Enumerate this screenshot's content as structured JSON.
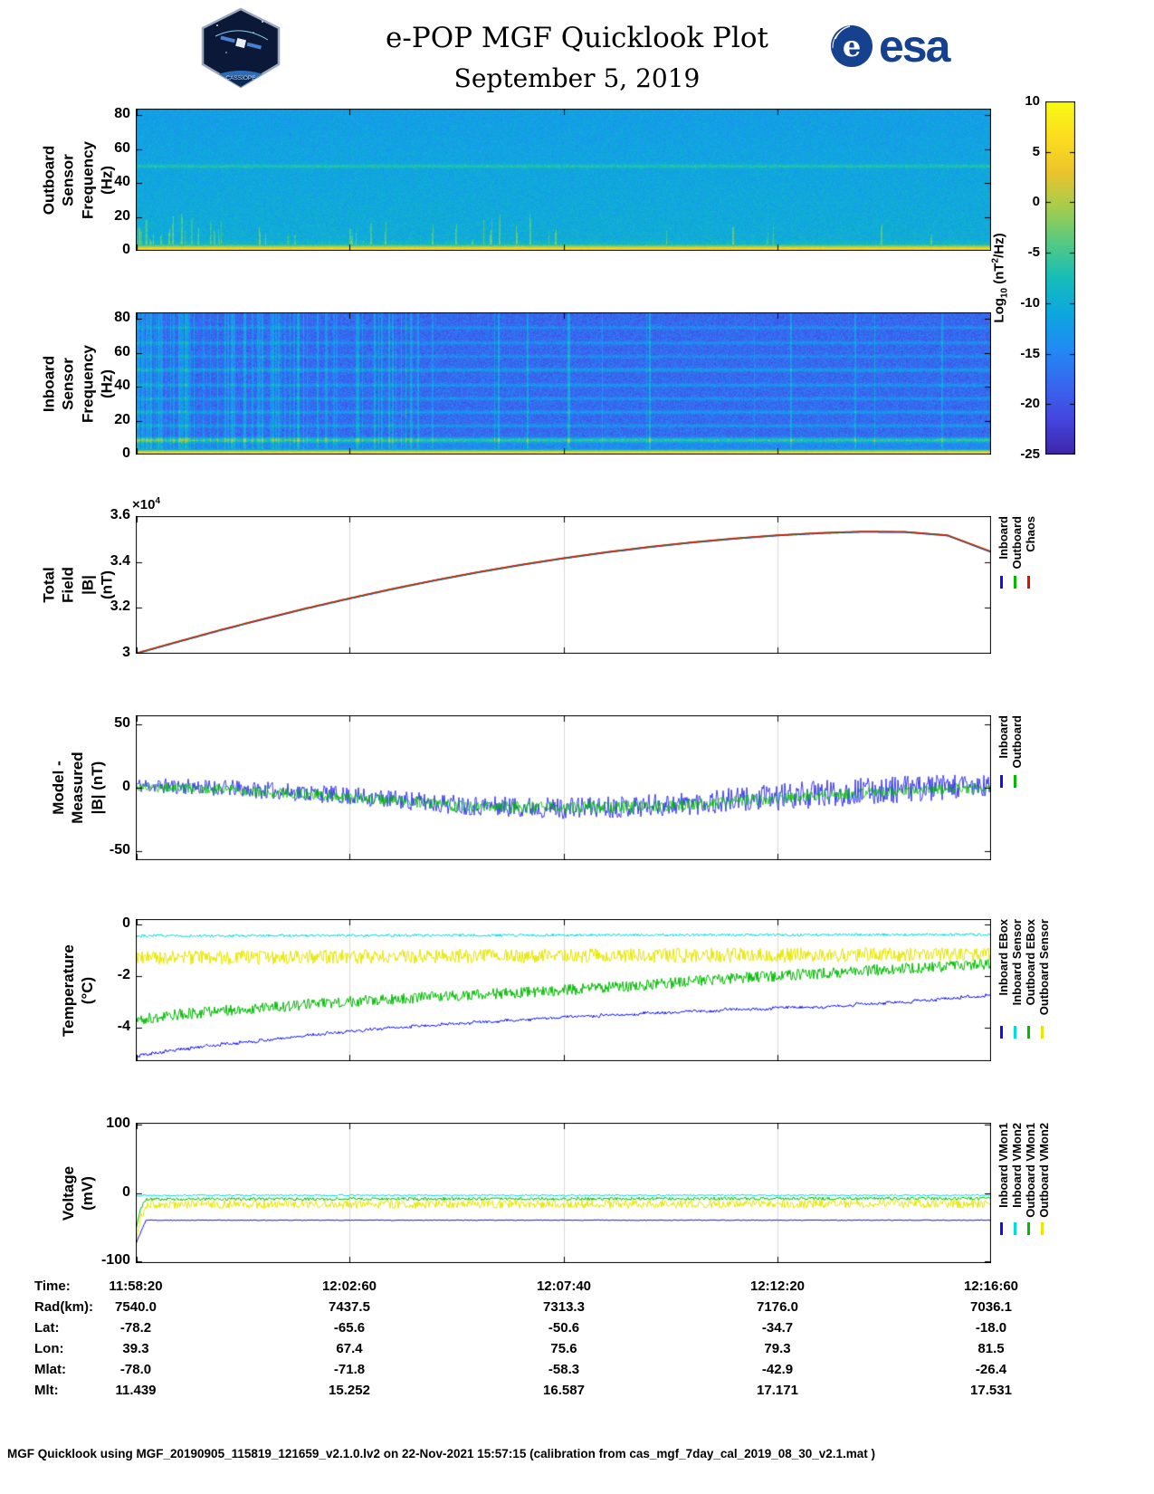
{
  "header": {
    "title": "e-POP MGF Quicklook Plot",
    "subtitle": "September 5, 2019",
    "esa_wordmark": "esa",
    "esa_emblem": "e",
    "cassiope_label": "CASSIOPE"
  },
  "colorbar": {
    "label_pre": "Log",
    "label_sub": "10",
    "label_mid": " (nT",
    "label_sup": "2",
    "label_post": "/Hz)",
    "vmin": -25,
    "vmax": 10,
    "ticks": [
      10,
      5,
      0,
      -5,
      -10,
      -15,
      -20,
      -25
    ]
  },
  "time_axis": {
    "tick_labels": [
      "11:58:20",
      "12:02:60",
      "12:07:40",
      "12:12:20",
      "12:16:60"
    ]
  },
  "ephemeris": {
    "rows": [
      {
        "label": "Time:",
        "values": [
          "11:58:20",
          "12:02:60",
          "12:07:40",
          "12:12:20",
          "12:16:60"
        ]
      },
      {
        "label": "Rad(km):",
        "values": [
          "7540.0",
          "7437.5",
          "7313.3",
          "7176.0",
          "7036.1"
        ]
      },
      {
        "label": "Lat:",
        "values": [
          "-78.2",
          "-65.6",
          "-50.6",
          "-34.7",
          "-18.0"
        ]
      },
      {
        "label": "Lon:",
        "values": [
          "39.3",
          "67.4",
          "75.6",
          "79.3",
          "81.5"
        ]
      },
      {
        "label": "Mlat:",
        "values": [
          "-78.0",
          "-71.8",
          "-58.3",
          "-42.9",
          "-26.4"
        ]
      },
      {
        "label": "Mlt:",
        "values": [
          "11.439",
          "15.252",
          "16.587",
          "17.171",
          "17.531"
        ]
      }
    ]
  },
  "footer": "MGF Quicklook using MGF_20190905_115819_121659_v2.1.0.lv2 on 22-Nov-2021 15:57:15 (calibration from cas_mgf_7day_cal_2019_08_30_v2.1.mat )",
  "chart_data": {
    "panels": [
      {
        "id": "outboard-spectrogram",
        "type": "heatmap",
        "ylabel": "Outboard Sensor\nFrequency (Hz)",
        "ylim": [
          0,
          84
        ],
        "yticks": [
          {
            "v": 0,
            "l": "0"
          },
          {
            "v": 20,
            "l": "20"
          },
          {
            "v": 40,
            "l": "40"
          },
          {
            "v": 60,
            "l": "60"
          },
          {
            "v": 80,
            "l": "80"
          }
        ],
        "colorbar_units": "Log10 (nT2/Hz)",
        "heat": {
          "seed": 7,
          "background": -10,
          "noise": 1.6,
          "topgrad": 2,
          "lowboost": {
            "fmax": 6,
            "dv": 2.5
          },
          "band": {
            "h1": 1.3,
            "h2": 3.6,
            "value": 6.2
          },
          "hot_bottom": 8.5,
          "lines": [
            {
              "f": 50,
              "v": -5.5,
              "w": 0.8
            }
          ],
          "streaks": {
            "count": 60,
            "xmax": 0.5,
            "xbias": 2,
            "globalfrac": 0.22,
            "vmin": -6,
            "vmax": -2.5,
            "hmin": 3,
            "hmax": 24
          }
        }
      },
      {
        "id": "inboard-spectrogram",
        "type": "heatmap",
        "ylabel": "Inboard Sensor\nFrequency (Hz)",
        "ylim": [
          0,
          84
        ],
        "yticks": [
          {
            "v": 0,
            "l": "0"
          },
          {
            "v": 20,
            "l": "20"
          },
          {
            "v": 40,
            "l": "40"
          },
          {
            "v": 60,
            "l": "60"
          },
          {
            "v": 80,
            "l": "80"
          }
        ],
        "heat": {
          "seed": 29,
          "background": -17.5,
          "noise": 2.3,
          "topgrad": 0.5,
          "lowboost": {
            "fmax": 10,
            "dv": 4.2
          },
          "band": {
            "h1": 1.3,
            "h2": 3.4,
            "value": 6.0
          },
          "hot_bottom": 8.5,
          "lines": [
            {
              "f": 8.5,
              "v": -8,
              "w": 1.0
            },
            {
              "f": 17,
              "v": -13,
              "w": 0.7
            },
            {
              "f": 25,
              "v": -12.5,
              "w": 0.7
            },
            {
              "f": 33,
              "v": -13.5,
              "w": 0.7
            },
            {
              "f": 41,
              "v": -13,
              "w": 0.7
            },
            {
              "f": 50,
              "v": -12.5,
              "w": 0.8
            },
            {
              "f": 58,
              "v": -14,
              "w": 0.7
            },
            {
              "f": 66,
              "v": -13.5,
              "w": 0.7
            },
            {
              "f": 75,
              "v": -14,
              "w": 0.7
            }
          ],
          "stripes": {
            "count": 120,
            "xmax": 0.33,
            "xbias": 2.1,
            "globalfrac": 0.15,
            "vmin": -14.5,
            "vmax": -10
          }
        }
      },
      {
        "id": "total-field",
        "type": "line",
        "ylabel": "Total Field\n|B| (nT)",
        "exp_pre": "×10",
        "exp_sup": "4",
        "ylim": [
          30000,
          36000
        ],
        "yticks": [
          {
            "v": 30000,
            "l": "3"
          },
          {
            "v": 32000,
            "l": "3.2"
          },
          {
            "v": 34000,
            "l": "3.4"
          },
          {
            "v": 36000,
            "l": "3.6"
          }
        ],
        "grid": [
          0.25,
          0.5,
          0.75
        ],
        "legend": [
          {
            "label": "Inboard",
            "color": "#1010ee"
          },
          {
            "label": "Outboard",
            "color": "#00bb00"
          },
          {
            "label": "Chaos",
            "color": "#dd1100"
          }
        ],
        "series": [
          {
            "name": "Inboard",
            "color": "#1010ee",
            "lw": 1.6,
            "seed": 3,
            "x": [
              0,
              0.05,
              0.1,
              0.15,
              0.2,
              0.25,
              0.3,
              0.35,
              0.4,
              0.45,
              0.5,
              0.55,
              0.6,
              0.65,
              0.7,
              0.75,
              0.8,
              0.85,
              0.9,
              0.95,
              1
            ],
            "y": [
              30000,
              30520,
              31030,
              31510,
              31970,
              32400,
              32810,
              33190,
              33540,
              33860,
              34150,
              34410,
              34640,
              34840,
              35010,
              35150,
              35250,
              35310,
              35300,
              35150,
              34450
            ]
          },
          {
            "name": "Outboard",
            "color": "#00bb00",
            "lw": 1.4,
            "seed": 4,
            "same": 0,
            "offset": 12
          },
          {
            "name": "Chaos",
            "color": "#dd1100",
            "lw": 1.2,
            "seed": 5,
            "same": 0,
            "offset": 24
          }
        ]
      },
      {
        "id": "model-measured",
        "type": "line",
        "ylabel": "Model - Measured\n|B| (nT)",
        "ylim": [
          -57,
          57
        ],
        "yticks": [
          {
            "v": -50,
            "l": "-50"
          },
          {
            "v": 0,
            "l": "0"
          },
          {
            "v": 50,
            "l": "50"
          }
        ],
        "grid": [
          0.25,
          0.5,
          0.75
        ],
        "legend": [
          {
            "label": "Inboard",
            "color": "#1010ee"
          },
          {
            "label": "Outboard",
            "color": "#00bb00"
          }
        ],
        "series": [
          {
            "name": "Inboard",
            "color": "#1010ee",
            "lw": 0.8,
            "seed": 11,
            "x": [
              0,
              0.1,
              0.2,
              0.3,
              0.35,
              0.4,
              0.5,
              0.6,
              0.7,
              0.8,
              0.9,
              1
            ],
            "y": [
              2,
              0,
              -4,
              -9,
              -12,
              -14,
              -16,
              -14,
              -10,
              -5,
              -1,
              1
            ],
            "ampx": [
              0,
              0.2,
              0.4,
              0.6,
              0.8,
              1
            ],
            "ampy": [
              6,
              7,
              8,
              9,
              11,
              10
            ]
          },
          {
            "name": "Outboard",
            "color": "#00bb00",
            "lw": 0.8,
            "seed": 17,
            "x": [
              0,
              0.1,
              0.2,
              0.3,
              0.35,
              0.4,
              0.5,
              0.6,
              0.7,
              0.8,
              0.9,
              1
            ],
            "y": [
              1,
              -1,
              -5,
              -10,
              -13,
              -15,
              -16,
              -15,
              -11,
              -6,
              -2,
              0
            ],
            "ampx": [
              0,
              0.5,
              1
            ],
            "ampy": [
              4,
              5,
              4
            ]
          }
        ]
      },
      {
        "id": "temperature",
        "type": "line",
        "ylabel": "Temperature\n(°C)",
        "ylim": [
          -5.3,
          0.2
        ],
        "yticks": [
          {
            "v": 0,
            "l": "0"
          },
          {
            "v": -2,
            "l": "-2"
          },
          {
            "v": -4,
            "l": "-4"
          }
        ],
        "grid": [
          0.25,
          0.5,
          0.75
        ],
        "legend": [
          {
            "label": "Inboard EBox",
            "color": "#1010ee"
          },
          {
            "label": "Inboard Sensor",
            "color": "#00dddd"
          },
          {
            "label": "Outboard EBox",
            "color": "#00bb00"
          },
          {
            "label": "Outboard Sensor",
            "color": "#e8e800"
          }
        ],
        "series": [
          {
            "name": "Inboard EBox",
            "color": "#1010ee",
            "lw": 1,
            "seed": 5,
            "step": true,
            "x": [
              0,
              0.02,
              0.05,
              0.1,
              0.15,
              0.2,
              0.25,
              0.3,
              0.4,
              0.5,
              0.6,
              0.7,
              0.8,
              0.9,
              1
            ],
            "y": [
              -5.1,
              -5.0,
              -4.85,
              -4.65,
              -4.5,
              -4.3,
              -4.15,
              -4.0,
              -3.8,
              -3.6,
              -3.45,
              -3.3,
              -3.2,
              -3.0,
              -2.75
            ],
            "ampx": [
              0,
              1
            ],
            "ampy": [
              0.05,
              0.05
            ]
          },
          {
            "name": "Inboard Sensor",
            "color": "#00dddd",
            "lw": 1,
            "seed": 6,
            "x": [
              0,
              1
            ],
            "y": [
              -0.45,
              -0.4
            ],
            "ampx": [
              0,
              1
            ],
            "ampy": [
              0.05,
              0.05
            ]
          },
          {
            "name": "Outboard EBox",
            "color": "#00bb00",
            "lw": 1,
            "seed": 8,
            "x": [
              0,
              0.05,
              0.1,
              0.2,
              0.3,
              0.4,
              0.5,
              0.6,
              0.7,
              0.8,
              0.9,
              1
            ],
            "y": [
              -3.7,
              -3.5,
              -3.35,
              -3.1,
              -2.9,
              -2.72,
              -2.55,
              -2.35,
              -2.1,
              -1.9,
              -1.7,
              -1.55
            ],
            "ampx": [
              0,
              1
            ],
            "ampy": [
              0.22,
              0.22
            ]
          },
          {
            "name": "Outboard Sensor",
            "color": "#e8e800",
            "lw": 1,
            "seed": 9,
            "x": [
              0,
              1
            ],
            "y": [
              -1.3,
              -1.15
            ],
            "ampx": [
              0,
              1
            ],
            "ampy": [
              0.28,
              0.28
            ]
          }
        ]
      },
      {
        "id": "voltage",
        "type": "line",
        "ylabel": "Voltage\n(mV)",
        "ylim": [
          -103,
          103
        ],
        "yticks": [
          {
            "v": -100,
            "l": "-100"
          },
          {
            "v": 0,
            "l": "0"
          },
          {
            "v": 100,
            "l": "100"
          }
        ],
        "grid": [
          0.25,
          0.5,
          0.75
        ],
        "legend": [
          {
            "label": "Inboard VMon1",
            "color": "#1010ee"
          },
          {
            "label": "Inboard VMon2",
            "color": "#00dddd"
          },
          {
            "label": "Outboard VMon1",
            "color": "#00bb00"
          },
          {
            "label": "Outboard VMon2",
            "color": "#e8e800"
          }
        ],
        "series": [
          {
            "name": "Inboard VMon1",
            "color": "#1010ee",
            "lw": 1,
            "seed": 12,
            "x": [
              0,
              0.005,
              0.012,
              1
            ],
            "y": [
              -75,
              -60,
              -40,
              -40
            ],
            "ampx": [
              0,
              1
            ],
            "ampy": [
              0.6,
              0.6
            ]
          },
          {
            "name": "Inboard VMon2",
            "color": "#00dddd",
            "lw": 1,
            "seed": 13,
            "x": [
              0,
              1
            ],
            "y": [
              -3.5,
              -3.5
            ],
            "ampx": [
              0,
              1
            ],
            "ampy": [
              1.2,
              1.2
            ]
          },
          {
            "name": "Outboard VMon1",
            "color": "#00bb00",
            "lw": 1,
            "seed": 14,
            "x": [
              0,
              0.005,
              0.012,
              1
            ],
            "y": [
              -55,
              -25,
              -9,
              -8
            ],
            "ampx": [
              0,
              1
            ],
            "ampy": [
              2.2,
              2.2
            ]
          },
          {
            "name": "Outboard VMon2",
            "color": "#e8e800",
            "lw": 1,
            "seed": 15,
            "x": [
              0,
              0.005,
              0.012,
              1
            ],
            "y": [
              -70,
              -40,
              -17,
              -16
            ],
            "ampx": [
              0,
              1
            ],
            "ampy": [
              6,
              6
            ]
          }
        ]
      }
    ]
  }
}
